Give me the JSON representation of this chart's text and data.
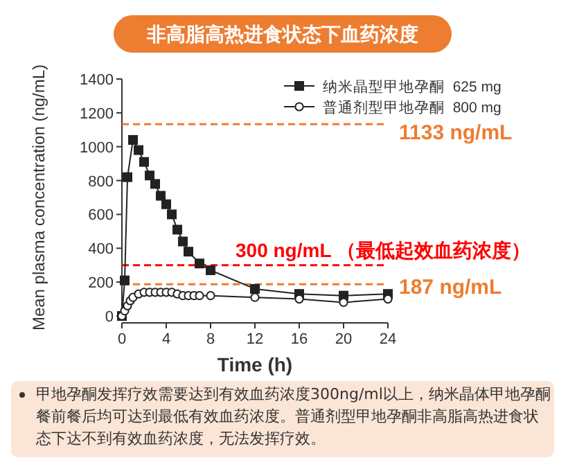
{
  "chart_data": {
    "type": "line",
    "title": "非高脂高热进食状态下血药浓度",
    "xlabel": "Time (h)",
    "ylabel": "Mean plasma concentration (ng/mL)",
    "xlim": [
      0,
      24
    ],
    "xticks": [
      0,
      4,
      8,
      12,
      16,
      20,
      24
    ],
    "ylim": [
      0,
      1400
    ],
    "yticks": [
      0,
      200,
      400,
      600,
      800,
      1000,
      1200,
      1400
    ],
    "series": [
      {
        "name": "纳米晶型甲地孕酮  625 mg",
        "color": "#222222",
        "marker": "square",
        "x": [
          0,
          0.25,
          0.5,
          1,
          1.5,
          2,
          2.5,
          3,
          3.5,
          4,
          4.5,
          5,
          5.5,
          6,
          7,
          8,
          12,
          16,
          20,
          24
        ],
        "values": [
          0,
          210,
          820,
          1040,
          980,
          910,
          830,
          780,
          710,
          660,
          600,
          510,
          440,
          380,
          310,
          270,
          160,
          130,
          120,
          130
        ]
      },
      {
        "name": "普通剂型甲地孕酮  800 mg",
        "color": "#222222",
        "marker": "circle",
        "x": [
          0,
          0.25,
          0.5,
          0.75,
          1,
          1.5,
          2,
          2.5,
          3,
          3.5,
          4,
          4.5,
          5,
          5.5,
          6,
          6.5,
          7,
          8,
          12,
          16,
          20,
          24
        ],
        "values": [
          0,
          30,
          60,
          90,
          110,
          130,
          140,
          140,
          140,
          140,
          140,
          140,
          130,
          120,
          120,
          120,
          120,
          120,
          110,
          100,
          80,
          100
        ]
      }
    ],
    "ref_lines": [
      {
        "axis": "y",
        "value": 1133,
        "label": "1133 ng/mL",
        "color": "#ed7d31",
        "line_style": "dashed"
      },
      {
        "axis": "y",
        "value": 300,
        "label": "300 ng/mL （最低起效血药浓度）",
        "color": "#ff0000",
        "line_style": "dashed"
      },
      {
        "axis": "y",
        "value": 187,
        "label": "187 ng/mL",
        "color": "#ed7d31",
        "line_style": "dashed"
      }
    ],
    "legend": "top right",
    "annotations": [
      "甲地孕酮发挥疗效需要达到有效血药浓度300ng/ml以上，纳米晶体甲地孕酮餐前餐后均可达到最低有效血药浓度。普通剂型甲地孕酮非高脂高热进食状态下达不到有效血药浓度，无法发挥疗效。"
    ]
  }
}
